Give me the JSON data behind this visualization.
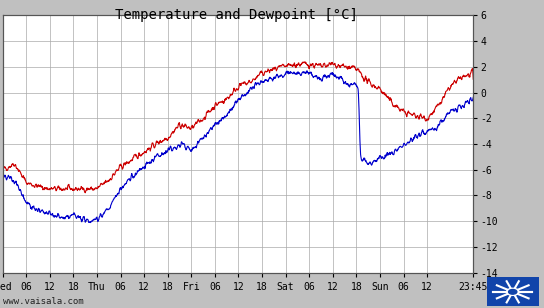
{
  "title": "Temperature and Dewpoint [°C]",
  "ylim": [
    -14,
    6
  ],
  "yticks": [
    -14,
    -12,
    -10,
    -8,
    -6,
    -4,
    -2,
    0,
    2,
    4,
    6
  ],
  "background_color": "#ffffff",
  "outer_bg_color": "#c0c0c0",
  "temp_color": "#cc0000",
  "dewp_color": "#0000cc",
  "line_width": 0.8,
  "watermark": "www.vaisala.com",
  "grid_color": "#aaaaaa",
  "title_fontsize": 10,
  "tick_fontsize": 7,
  "font_family": "monospace",
  "xtick_pos": [
    0,
    6,
    12,
    18,
    24,
    30,
    36,
    42,
    48,
    54,
    60,
    66,
    72,
    78,
    84,
    90,
    96,
    102,
    108,
    119.75
  ],
  "xtick_labels": [
    "Wed",
    "06",
    "12",
    "18",
    "Thu",
    "06",
    "12",
    "18",
    "Fri",
    "06",
    "12",
    "18",
    "Sat",
    "06",
    "12",
    "18",
    "Sun",
    "06",
    "12",
    "23:45"
  ],
  "xlim": [
    0,
    119.75
  ]
}
